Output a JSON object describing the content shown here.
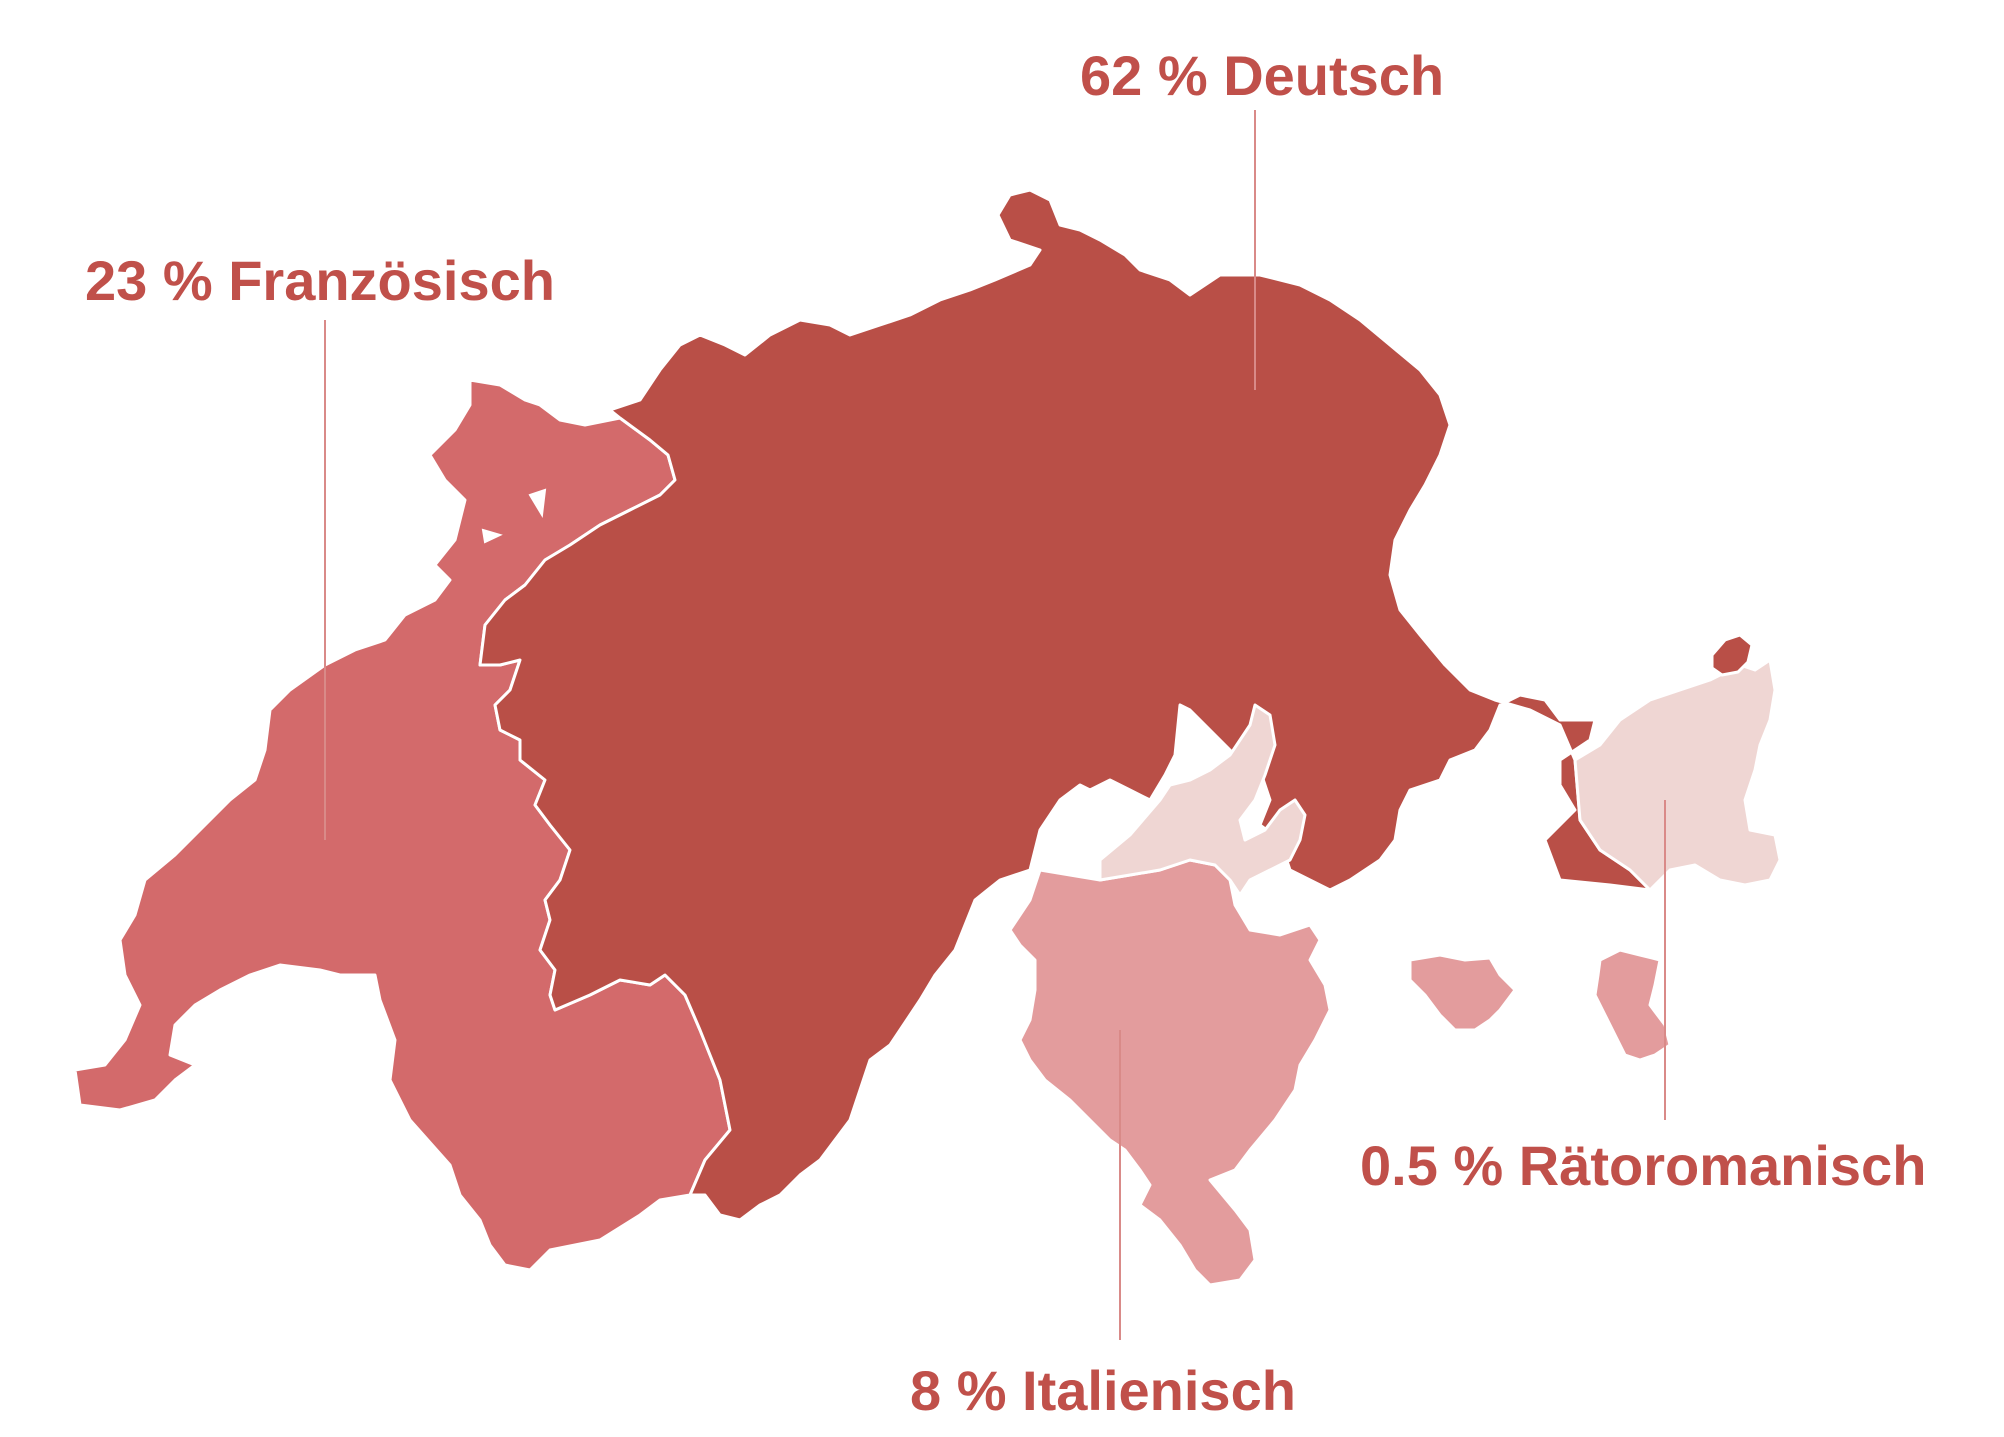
{
  "map": {
    "labels": {
      "deutsch": "62 % Deutsch",
      "franzoesisch": "23 % Französisch",
      "italienisch": "8 % Italienisch",
      "raetoromanisch": "0.5 % Rätoromanisch"
    },
    "language_shares_percent": {
      "deutsch": 62,
      "franzoesisch": 23,
      "italienisch": 8,
      "raetoromanisch": 0.5
    },
    "colors": {
      "deutsch": "#b94f47",
      "franzoesisch": "#d36a6b",
      "italienisch": "#e39c9d",
      "raetoromanisch": "#efd6d3",
      "label_text": "#c0504a",
      "leader_line": "#d98a88",
      "border": "#ffffff"
    }
  }
}
